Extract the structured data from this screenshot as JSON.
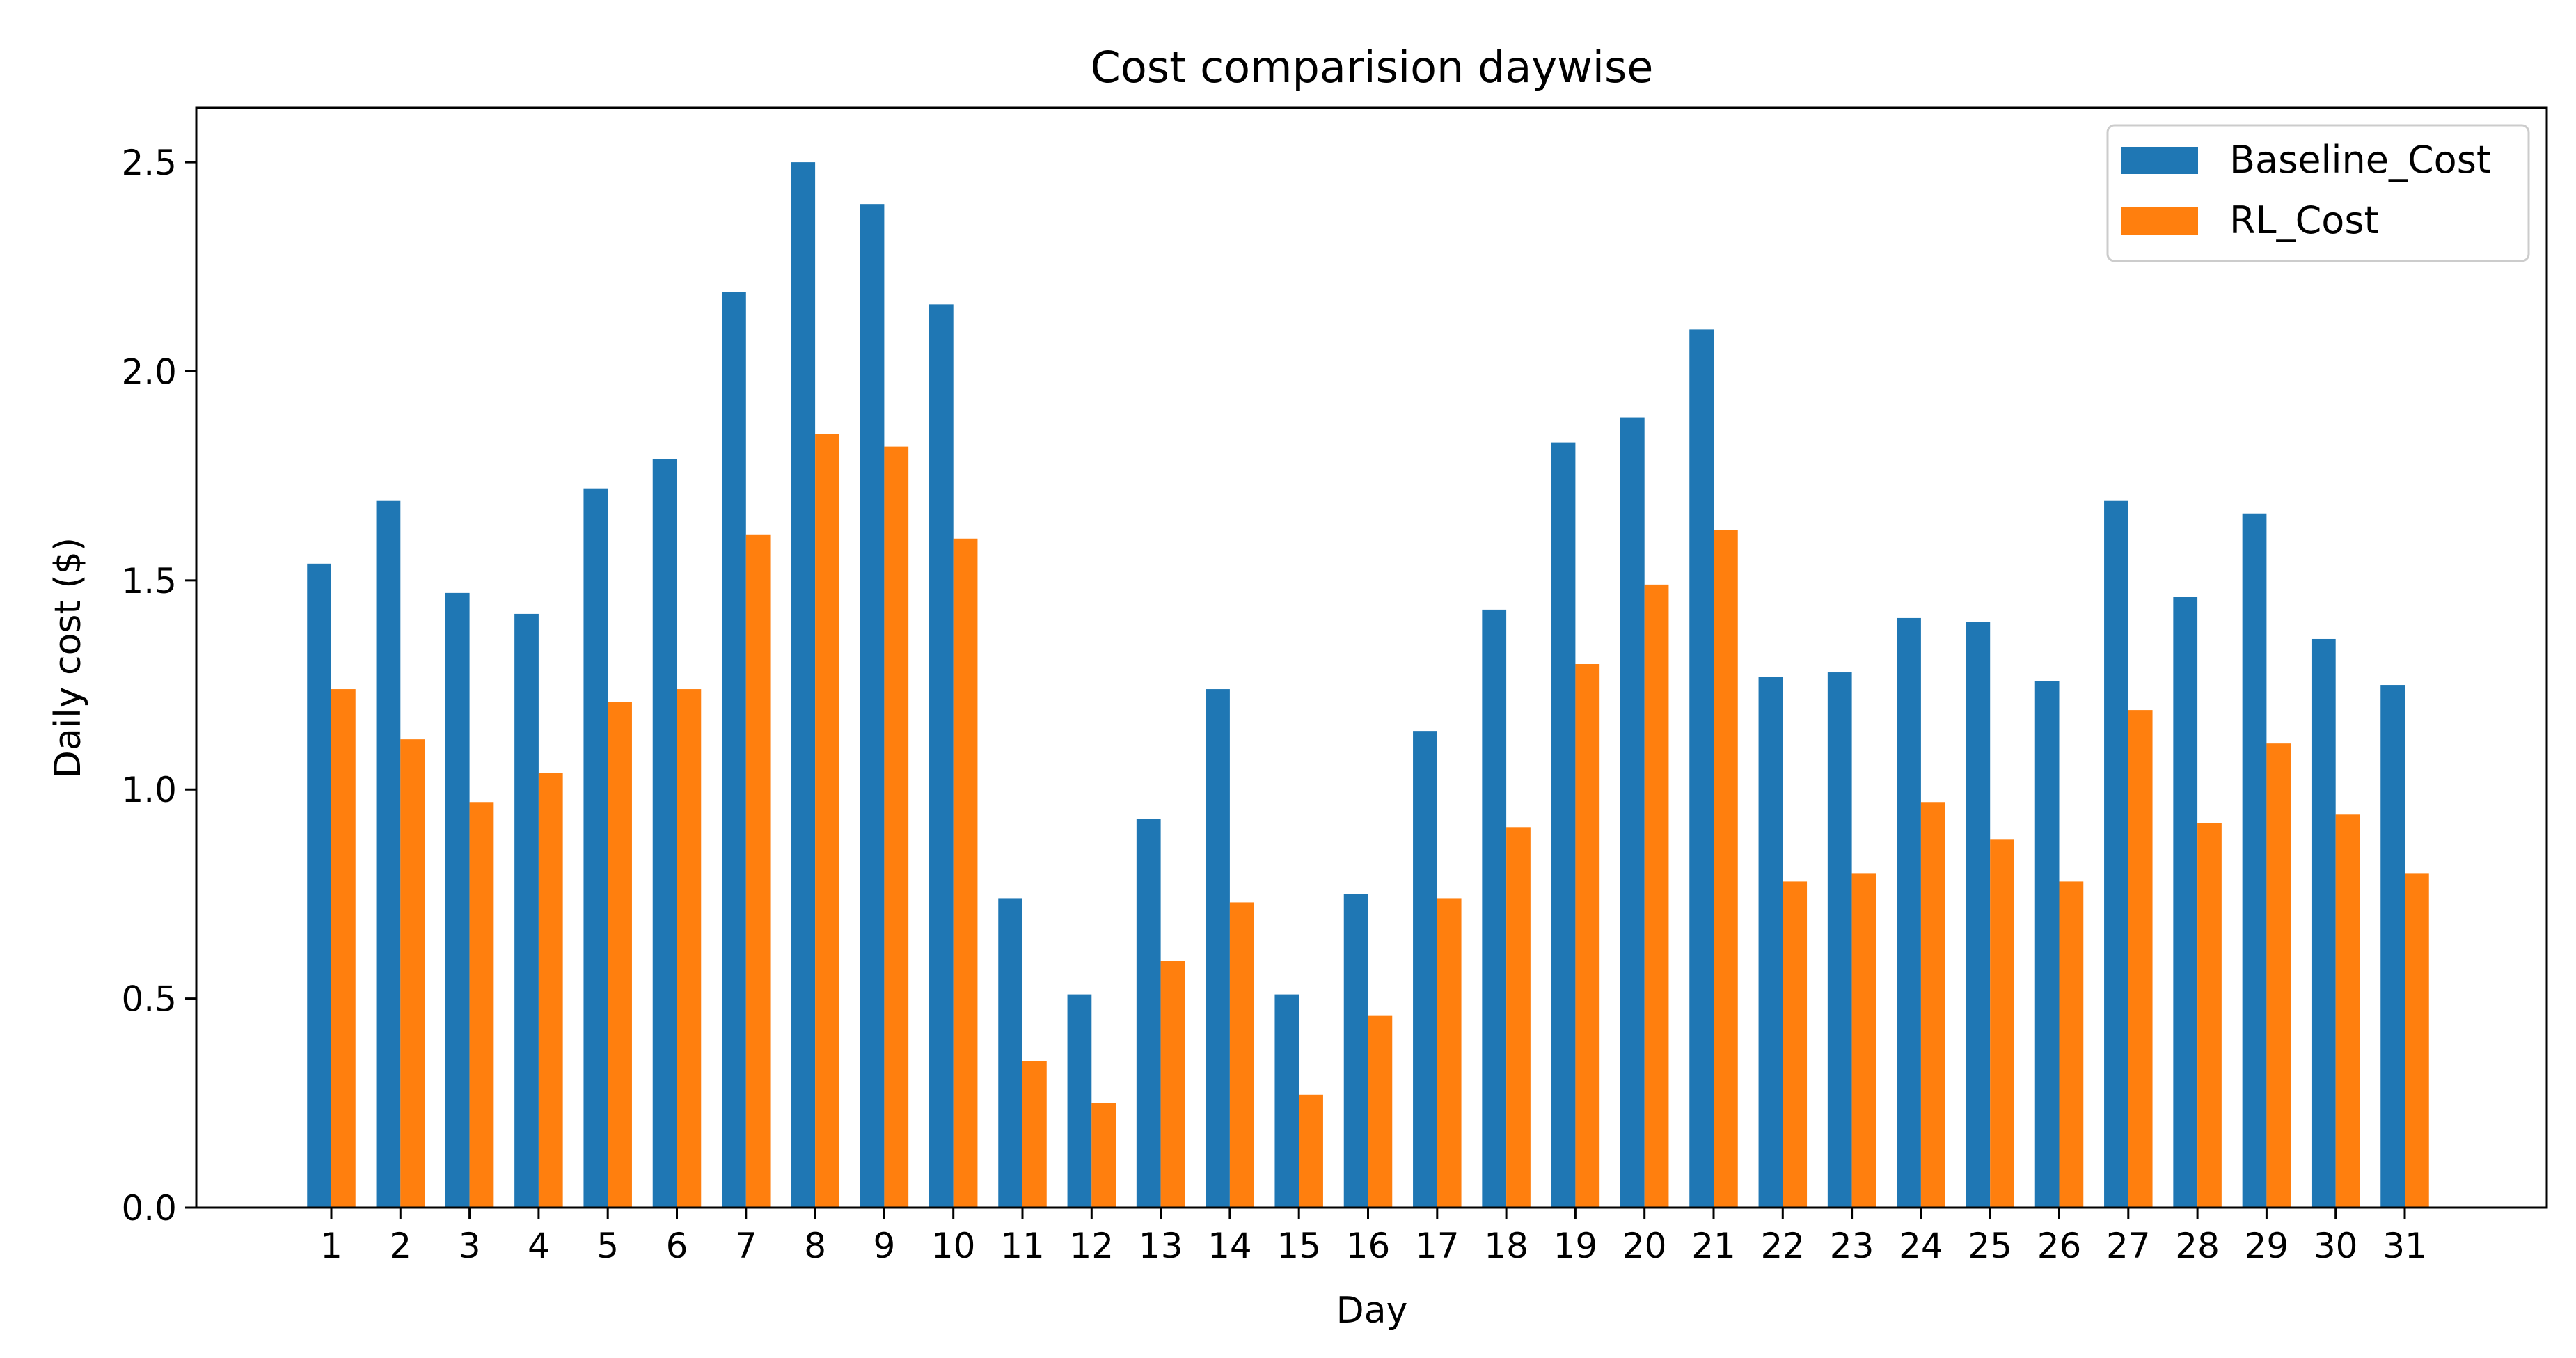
{
  "chart_data": {
    "type": "bar",
    "title": "Cost comparision daywise",
    "xlabel": "Day",
    "ylabel": "Daily cost ($)",
    "categories": [
      "1",
      "2",
      "3",
      "4",
      "5",
      "6",
      "7",
      "8",
      "9",
      "10",
      "11",
      "12",
      "13",
      "14",
      "15",
      "16",
      "17",
      "18",
      "19",
      "20",
      "21",
      "22",
      "23",
      "24",
      "25",
      "26",
      "27",
      "28",
      "29",
      "30",
      "31"
    ],
    "series": [
      {
        "name": "Baseline_Cost",
        "color": "#1f77b4",
        "values": [
          1.54,
          1.69,
          1.47,
          1.42,
          1.72,
          1.79,
          2.19,
          2.5,
          2.4,
          2.16,
          0.74,
          0.51,
          0.93,
          1.24,
          0.51,
          0.75,
          1.14,
          1.43,
          1.83,
          1.89,
          2.1,
          1.27,
          1.28,
          1.41,
          1.4,
          1.26,
          1.69,
          1.46,
          1.66,
          1.36,
          1.25
        ]
      },
      {
        "name": "RL_Cost",
        "color": "#ff7f0e",
        "values": [
          1.24,
          1.12,
          0.97,
          1.04,
          1.21,
          1.24,
          1.61,
          1.85,
          1.82,
          1.6,
          0.35,
          0.25,
          0.59,
          0.73,
          0.27,
          0.46,
          0.74,
          0.91,
          1.3,
          1.49,
          1.62,
          0.78,
          0.8,
          0.97,
          0.88,
          0.78,
          1.19,
          0.92,
          1.11,
          0.94,
          0.8
        ]
      }
    ],
    "ylim": [
      0,
      2.63
    ],
    "yticks": [
      0.0,
      0.5,
      1.0,
      1.5,
      2.0,
      2.5
    ],
    "ytick_labels": [
      "0.0",
      "0.5",
      "1.0",
      "1.5",
      "2.0",
      "2.5"
    ],
    "grid": false,
    "legend": "top-right"
  }
}
